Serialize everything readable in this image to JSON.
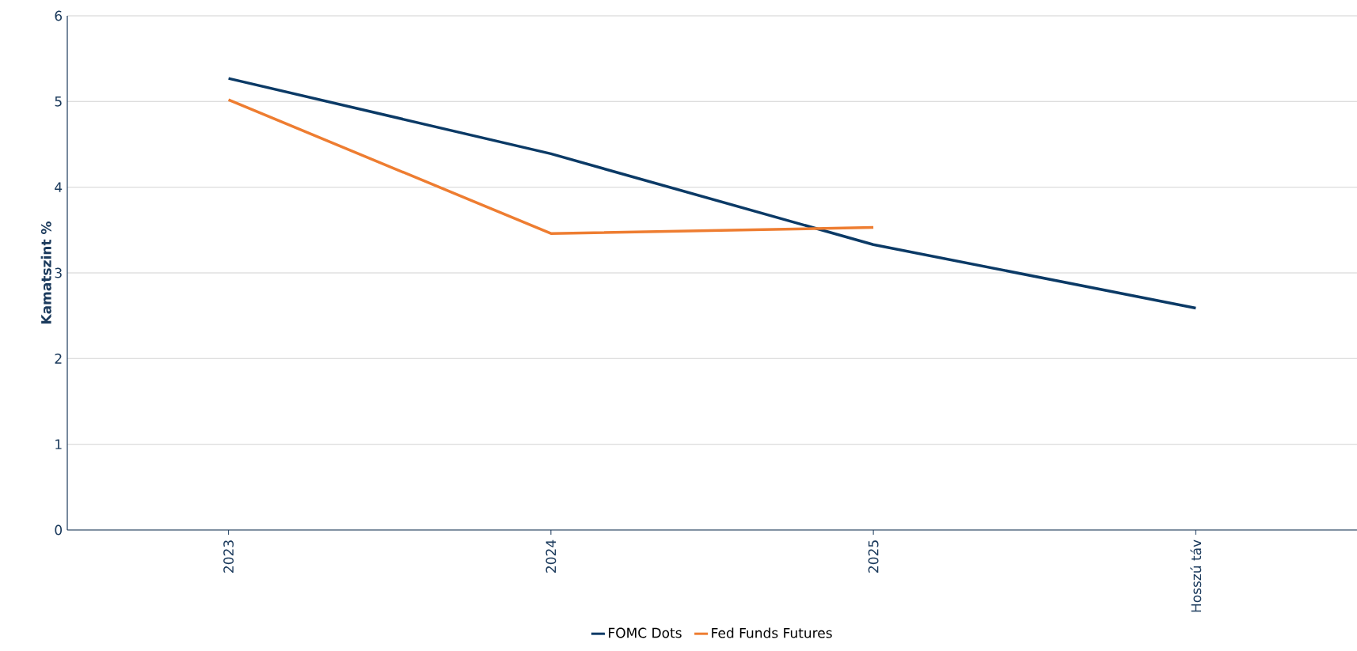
{
  "chart_data": {
    "type": "line",
    "ylabel": "Kamatszint %",
    "categories": [
      "2023",
      "2024",
      "2025",
      "Hosszú táv"
    ],
    "series": [
      {
        "name": "FOMC Dots",
        "color": "#0b3a66",
        "values": [
          5.27,
          4.39,
          3.33,
          2.59
        ]
      },
      {
        "name": "Fed Funds Futures",
        "color": "#ee7d31",
        "values": [
          5.02,
          3.46,
          3.53,
          null
        ]
      }
    ],
    "ylim": [
      0,
      6
    ],
    "yticks": [
      0,
      1,
      2,
      3,
      4,
      5,
      6
    ],
    "grid": "y",
    "legend": "bottom",
    "marker": "none",
    "line_style": "solid"
  }
}
